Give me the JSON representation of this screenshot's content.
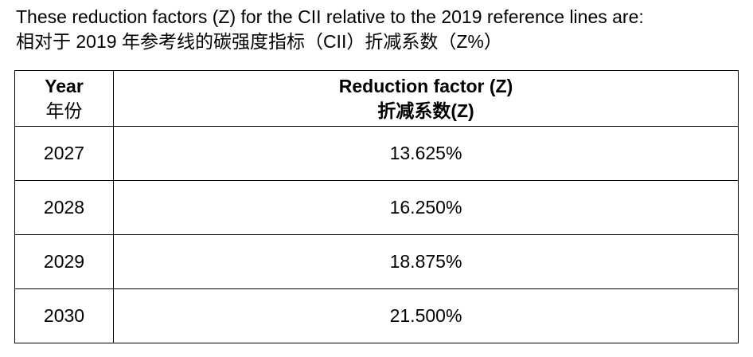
{
  "intro": {
    "en": "These reduction factors (Z) for the CII relative to the 2019 reference lines are:",
    "zh": "相对于 2019 年参考线的碳强度指标（CII）折减系数（Z%）"
  },
  "table": {
    "header": [
      [
        "Year",
        "年份"
      ],
      [
        "Reduction factor (Z)",
        "折减系数(Z)"
      ]
    ],
    "rows": [
      [
        "2027",
        "13.625%"
      ],
      [
        "2028",
        "16.250%"
      ],
      [
        "2029",
        "18.875%"
      ],
      [
        "2030",
        "21.500%"
      ]
    ]
  }
}
